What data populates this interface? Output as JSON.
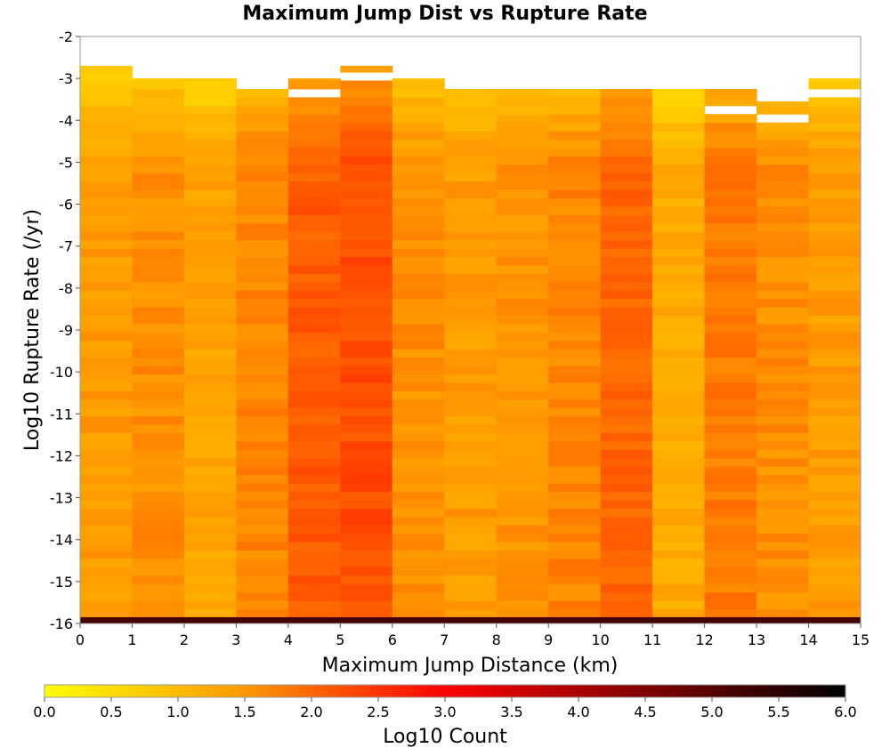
{
  "chart_data": {
    "type": "heatmap",
    "title": "Maximum Jump Dist vs Rupture Rate",
    "xlabel": "Maximum Jump Distance (km)",
    "ylabel": "Log10 Rupture Rate (/yr)",
    "xlim": [
      0,
      15
    ],
    "ylim": [
      -16,
      -2
    ],
    "x_ticks": [
      "0",
      "1",
      "2",
      "3",
      "4",
      "5",
      "6",
      "7",
      "8",
      "9",
      "10",
      "11",
      "12",
      "13",
      "14",
      "15"
    ],
    "y_ticks": [
      "-2",
      "-3",
      "-4",
      "-5",
      "-6",
      "-7",
      "-8",
      "-9",
      "-10",
      "-11",
      "-12",
      "-13",
      "-14",
      "-15",
      "-16"
    ],
    "bin_width_x": 1,
    "bin_height_y": 0.2,
    "colorbar": {
      "label": "Log10 Count",
      "range": [
        0,
        6
      ],
      "ticks": [
        "0.0",
        "0.5",
        "1.0",
        "1.5",
        "2.0",
        "2.5",
        "3.0",
        "3.5",
        "4.0",
        "4.5",
        "5.0",
        "5.5",
        "6.0"
      ],
      "colors": [
        "#ffff00",
        "#ff9900",
        "#ff0000",
        "#800000",
        "#000000"
      ]
    },
    "column_tops": [
      -2.7,
      -3.0,
      -3.0,
      -3.25,
      -3.0,
      -2.7,
      -3.0,
      -3.25,
      -3.25,
      -3.25,
      -3.25,
      -3.25,
      -3.25,
      -3.55,
      -3.0
    ],
    "column_base": [
      1.45,
      1.6,
      1.35,
      1.7,
      2.1,
      2.25,
      1.6,
      1.45,
      1.55,
      1.7,
      2.0,
      1.25,
      1.8,
      1.6,
      1.45
    ],
    "gaps": [
      {
        "col": 4,
        "from": -3.45,
        "to": -3.2
      },
      {
        "col": 5,
        "from": -3.1,
        "to": -2.95
      },
      {
        "col": 12,
        "from": -3.85,
        "to": -3.65
      },
      {
        "col": 13,
        "from": -4.1,
        "to": -3.9
      },
      {
        "col": 14,
        "from": -3.5,
        "to": -3.25
      }
    ],
    "bottom_row": {
      "from": -16,
      "to": -15.85,
      "value": 5.2
    }
  }
}
